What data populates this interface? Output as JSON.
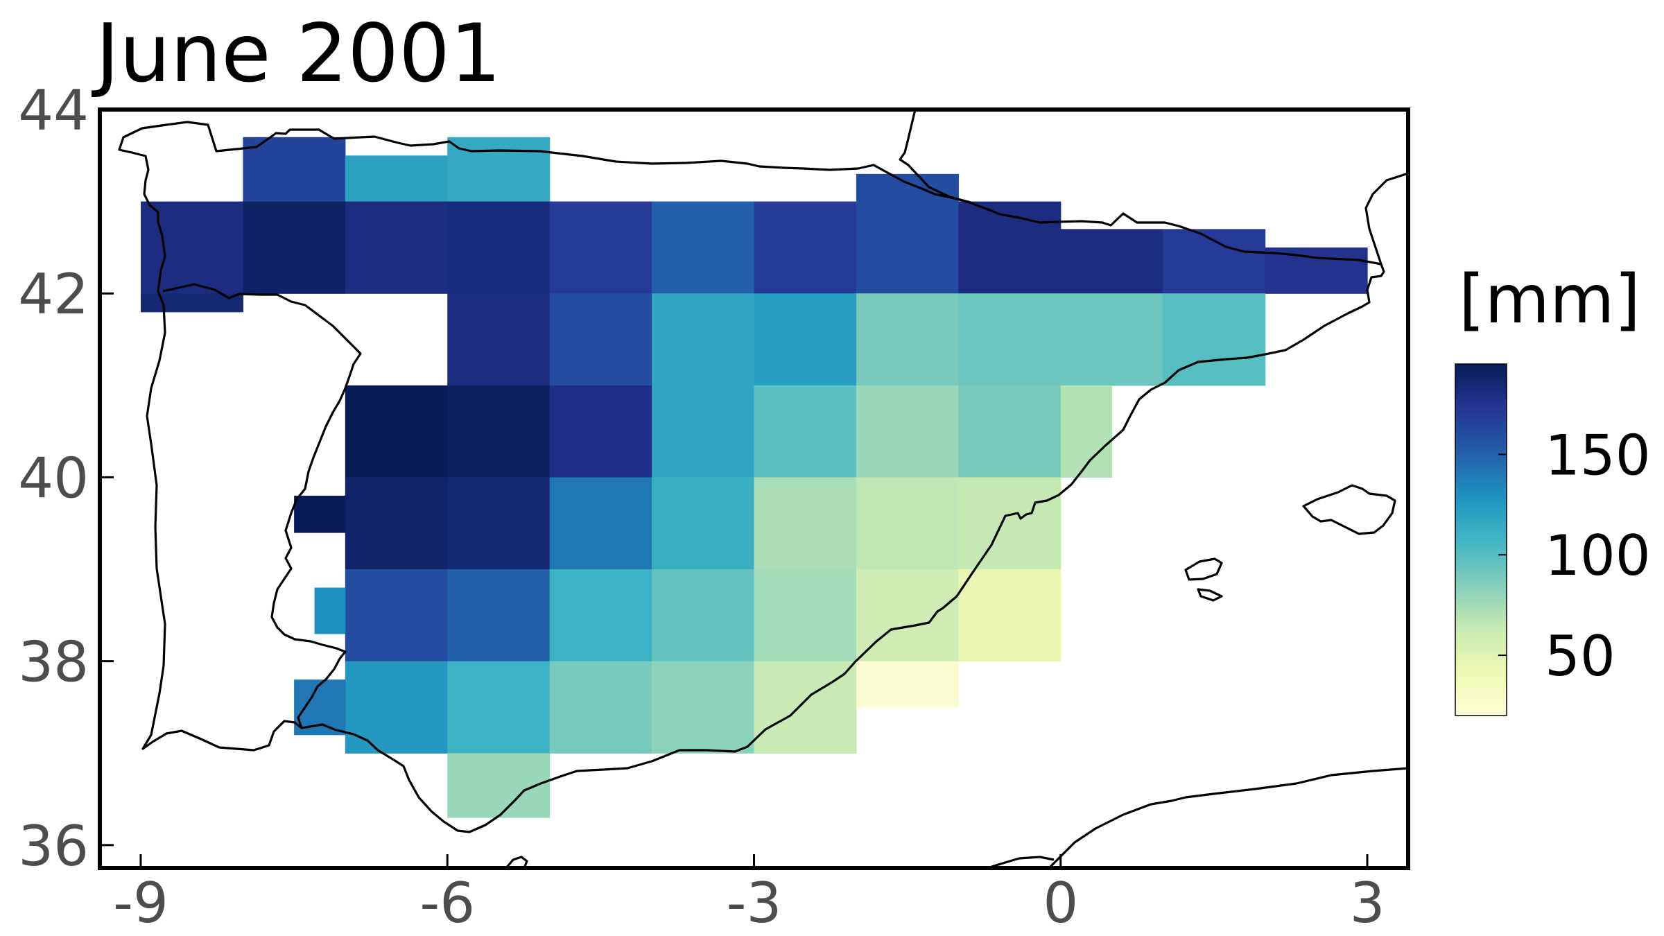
{
  "title": "June 2001",
  "colorbar": {
    "label": "[mm]",
    "ticks": [
      50,
      100,
      150
    ],
    "range": [
      20,
      195
    ],
    "colormap": [
      "#ffffd9",
      "#edf8b1",
      "#c7e9b4",
      "#7fcdbb",
      "#41b6c4",
      "#1d91c0",
      "#225ea8",
      "#253494",
      "#081d58"
    ]
  },
  "axes": {
    "x_ticks": [
      "-9",
      "-6",
      "-3",
      "0",
      "3"
    ],
    "y_ticks": [
      "44",
      "42",
      "40",
      "38",
      "36"
    ],
    "xlim": [
      -9.4,
      3.4
    ],
    "ylim": [
      35.75,
      44.0
    ]
  },
  "chart_data": {
    "type": "heatmap",
    "title": "June 2001",
    "units": "[mm]",
    "cell_size_deg": 1,
    "xlabel": "",
    "ylabel": "",
    "xlim": [
      -9.4,
      3.4
    ],
    "ylim": [
      35.75,
      44.0
    ],
    "cells": [
      {
        "lon_min": -8,
        "lat_min": 43,
        "lon_max": -7,
        "lat_max": 43.7,
        "v": 165
      },
      {
        "lon_min": -7,
        "lat_min": 43,
        "lon_max": -6,
        "lat_max": 43.5,
        "v": 120
      },
      {
        "lon_min": -6,
        "lat_min": 43,
        "lon_max": -5,
        "lat_max": 43.7,
        "v": 115
      },
      {
        "lon_min": -9,
        "lat_min": 42,
        "lon_max": -8,
        "lat_max": 43,
        "v": 180
      },
      {
        "lon_min": -8,
        "lat_min": 42,
        "lon_max": -7,
        "lat_max": 43,
        "v": 190
      },
      {
        "lon_min": -7,
        "lat_min": 42,
        "lon_max": -6,
        "lat_max": 43,
        "v": 180
      },
      {
        "lon_min": -6,
        "lat_min": 42,
        "lon_max": -5,
        "lat_max": 43,
        "v": 182
      },
      {
        "lon_min": -5,
        "lat_min": 42,
        "lon_max": -4,
        "lat_max": 43,
        "v": 170
      },
      {
        "lon_min": -4,
        "lat_min": 42,
        "lon_max": -3,
        "lat_max": 43,
        "v": 150
      },
      {
        "lon_min": -3,
        "lat_min": 42,
        "lon_max": -2,
        "lat_max": 43,
        "v": 170
      },
      {
        "lon_min": -2,
        "lat_min": 42,
        "lon_max": -1,
        "lat_max": 43.3,
        "v": 160
      },
      {
        "lon_min": -1,
        "lat_min": 42,
        "lon_max": 0,
        "lat_max": 43,
        "v": 180
      },
      {
        "lon_min": 0,
        "lat_min": 42,
        "lon_max": 1,
        "lat_max": 42.7,
        "v": 180
      },
      {
        "lon_min": 1,
        "lat_min": 42,
        "lon_max": 2,
        "lat_max": 42.7,
        "v": 170
      },
      {
        "lon_min": 2,
        "lat_min": 42,
        "lon_max": 3,
        "lat_max": 42.5,
        "v": 175
      },
      {
        "lon_min": -9,
        "lat_min": 41.8,
        "lon_max": -8,
        "lat_max": 42,
        "v": 185
      },
      {
        "lon_min": -6,
        "lat_min": 41,
        "lon_max": -5,
        "lat_max": 42,
        "v": 180
      },
      {
        "lon_min": -5,
        "lat_min": 41,
        "lon_max": -4,
        "lat_max": 42,
        "v": 160
      },
      {
        "lon_min": -4,
        "lat_min": 41,
        "lon_max": -3,
        "lat_max": 42,
        "v": 118
      },
      {
        "lon_min": -3,
        "lat_min": 41,
        "lon_max": -2,
        "lat_max": 42,
        "v": 122
      },
      {
        "lon_min": -2,
        "lat_min": 41,
        "lon_max": -1,
        "lat_max": 42,
        "v": 88
      },
      {
        "lon_min": -1,
        "lat_min": 41,
        "lon_max": 0,
        "lat_max": 42,
        "v": 92
      },
      {
        "lon_min": 0,
        "lat_min": 41,
        "lon_max": 1,
        "lat_max": 42,
        "v": 92
      },
      {
        "lon_min": 1,
        "lat_min": 41,
        "lon_max": 2,
        "lat_max": 42,
        "v": 100
      },
      {
        "lon_min": -7,
        "lat_min": 40,
        "lon_max": -6,
        "lat_max": 41,
        "v": 195
      },
      {
        "lon_min": -6,
        "lat_min": 40,
        "lon_max": -5,
        "lat_max": 41,
        "v": 192
      },
      {
        "lon_min": -5,
        "lat_min": 40,
        "lon_max": -4,
        "lat_max": 41,
        "v": 178
      },
      {
        "lon_min": -4,
        "lat_min": 40,
        "lon_max": -3,
        "lat_max": 41,
        "v": 118
      },
      {
        "lon_min": -3,
        "lat_min": 40,
        "lon_max": -2,
        "lat_max": 41,
        "v": 98
      },
      {
        "lon_min": -2,
        "lat_min": 40,
        "lon_max": -1,
        "lat_max": 41,
        "v": 78
      },
      {
        "lon_min": -1,
        "lat_min": 40,
        "lon_max": 0,
        "lat_max": 41,
        "v": 88
      },
      {
        "lon_min": 0,
        "lat_min": 40,
        "lon_max": 0.5,
        "lat_max": 41,
        "v": 70
      },
      {
        "lon_min": -7,
        "lat_min": 39,
        "lon_max": -6,
        "lat_max": 40,
        "v": 188
      },
      {
        "lon_min": -6,
        "lat_min": 39,
        "lon_max": -5,
        "lat_max": 40,
        "v": 185
      },
      {
        "lon_min": -5,
        "lat_min": 39,
        "lon_max": -4,
        "lat_max": 40,
        "v": 140
      },
      {
        "lon_min": -4,
        "lat_min": 39,
        "lon_max": -3,
        "lat_max": 40,
        "v": 112
      },
      {
        "lon_min": -3,
        "lat_min": 39,
        "lon_max": -2,
        "lat_max": 40,
        "v": 72
      },
      {
        "lon_min": -2,
        "lat_min": 39,
        "lon_max": -1,
        "lat_max": 40,
        "v": 66
      },
      {
        "lon_min": -1,
        "lat_min": 39,
        "lon_max": 0,
        "lat_max": 40,
        "v": 64
      },
      {
        "lon_min": -7.5,
        "lat_min": 39.4,
        "lon_max": -7,
        "lat_max": 39.8,
        "v": 195
      },
      {
        "lon_min": -7,
        "lat_min": 38,
        "lon_max": -6,
        "lat_max": 39,
        "v": 160
      },
      {
        "lon_min": -6,
        "lat_min": 38,
        "lon_max": -5,
        "lat_max": 39,
        "v": 150
      },
      {
        "lon_min": -5,
        "lat_min": 38,
        "lon_max": -4,
        "lat_max": 39,
        "v": 110
      },
      {
        "lon_min": -4,
        "lat_min": 38,
        "lon_max": -3,
        "lat_max": 39,
        "v": 95
      },
      {
        "lon_min": -3,
        "lat_min": 38,
        "lon_max": -2,
        "lat_max": 39,
        "v": 75
      },
      {
        "lon_min": -2,
        "lat_min": 38,
        "lon_max": -1,
        "lat_max": 39,
        "v": 60
      },
      {
        "lon_min": -1,
        "lat_min": 38,
        "lon_max": 0,
        "lat_max": 39,
        "v": 45
      },
      {
        "lon_min": -7.3,
        "lat_min": 38.3,
        "lon_max": -7,
        "lat_max": 38.8,
        "v": 130
      },
      {
        "lon_min": -7,
        "lat_min": 37,
        "lon_max": -6,
        "lat_max": 38,
        "v": 125
      },
      {
        "lon_min": -6,
        "lat_min": 37,
        "lon_max": -5,
        "lat_max": 38,
        "v": 110
      },
      {
        "lon_min": -5,
        "lat_min": 37,
        "lon_max": -4,
        "lat_max": 38,
        "v": 88
      },
      {
        "lon_min": -4,
        "lat_min": 37,
        "lon_max": -3,
        "lat_max": 38,
        "v": 82
      },
      {
        "lon_min": -3,
        "lat_min": 37,
        "lon_max": -2,
        "lat_max": 38,
        "v": 62
      },
      {
        "lon_min": -2,
        "lat_min": 37.5,
        "lon_max": -1,
        "lat_max": 38,
        "v": 25
      },
      {
        "lon_min": -7.5,
        "lat_min": 37.2,
        "lon_max": -7,
        "lat_max": 37.8,
        "v": 140
      },
      {
        "lon_min": -6,
        "lat_min": 36.3,
        "lon_max": -5,
        "lat_max": 37,
        "v": 78
      }
    ]
  }
}
